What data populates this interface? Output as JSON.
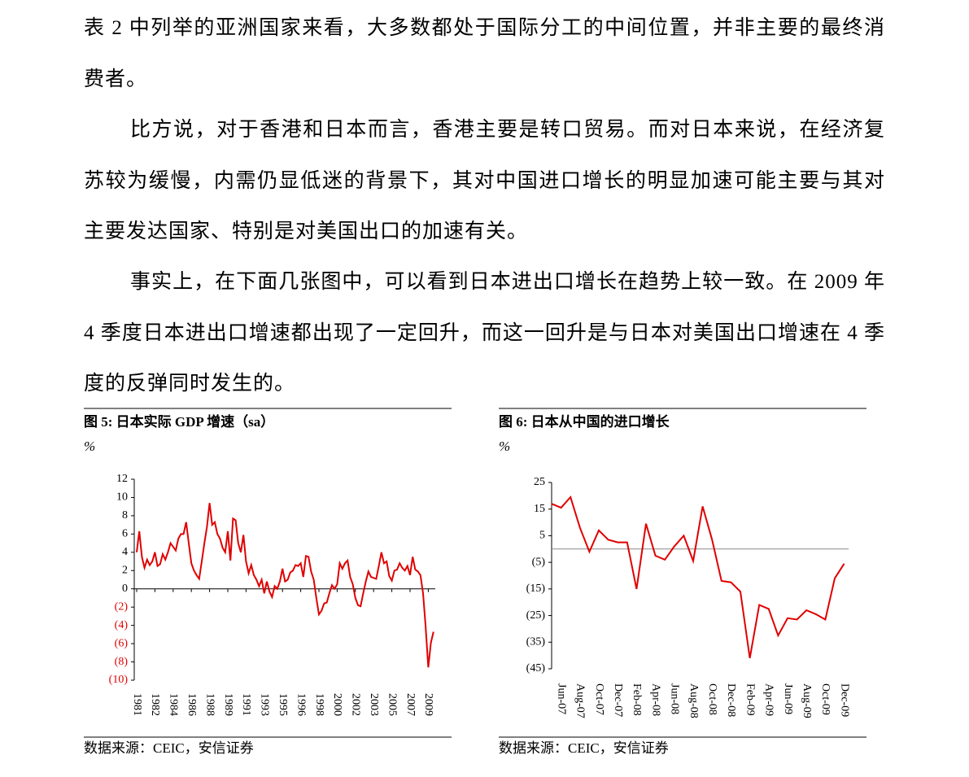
{
  "paragraphs": [
    "表 2 中列举的亚洲国家来看，大多数都处于国际分工的中间位置，并非主要的最终消费者。",
    "比方说，对于香港和日本而言，香港主要是转口贸易。而对日本来说，在经济复苏较为缓慢，内需仍显低迷的背景下，其对中国进口增长的明显加速可能主要与其对主要发达国家、特别是对美国出口的加速有关。",
    "事实上，在下面几张图中，可以看到日本进出口增长在趋势上较一致。在 2009 年 4 季度日本进出口增速都出现了一定回升，而这一回升是与日本对美国出口增速在 4 季度的反弹同时发生的。"
  ],
  "chart_data": [
    {
      "type": "line",
      "title": "图 5:  日本实际 GDP 增速（sa）",
      "ylabel": "%",
      "source": "数据来源：CEIC，安信证券",
      "color": "#e00000",
      "categories": [
        "1981",
        null,
        null,
        null,
        null,
        null,
        null,
        "1982",
        null,
        null,
        null,
        null,
        null,
        null,
        "1984",
        null,
        null,
        null,
        null,
        null,
        null,
        "1986",
        null,
        null,
        null,
        null,
        null,
        null,
        "1988",
        null,
        null,
        null,
        null,
        null,
        null,
        "1989",
        null,
        null,
        null,
        null,
        null,
        null,
        "1991",
        null,
        null,
        null,
        null,
        null,
        null,
        "1993",
        null,
        null,
        null,
        null,
        null,
        null,
        "1995",
        null,
        null,
        null,
        null,
        null,
        null,
        "1996",
        null,
        null,
        null,
        null,
        null,
        null,
        "1998",
        null,
        null,
        null,
        null,
        null,
        null,
        "2000",
        null,
        null,
        null,
        null,
        null,
        null,
        "2002",
        null,
        null,
        null,
        null,
        null,
        null,
        "2003",
        null,
        null,
        null,
        null,
        null,
        null,
        "2005",
        null,
        null,
        null,
        null,
        null,
        null,
        "2007",
        null,
        null,
        null,
        null,
        null,
        null,
        "2009",
        null,
        null
      ],
      "values": [
        4.0,
        6.3,
        3.5,
        2.3,
        3.2,
        2.6,
        3.0,
        4.0,
        2.5,
        2.7,
        3.8,
        3.2,
        4.0,
        5.0,
        4.6,
        4.2,
        5.5,
        6.0,
        6.0,
        7.3,
        5.0,
        2.8,
        2.0,
        1.5,
        1.1,
        3.0,
        5.0,
        6.8,
        9.4,
        7.0,
        7.3,
        6.0,
        5.5,
        4.5,
        4.0,
        6.3,
        3.1,
        7.7,
        7.5,
        5.0,
        4.0,
        5.9,
        3.0,
        1.7,
        2.6,
        1.5,
        1.0,
        0.3,
        1.0,
        -0.5,
        0.8,
        -0.3,
        -0.9,
        0.3,
        0.0,
        0.8,
        2.2,
        0.8,
        1.0,
        1.8,
        2.0,
        2.6,
        2.5,
        2.8,
        1.3,
        3.6,
        3.5,
        1.9,
        1.0,
        -1.0,
        -2.8,
        -2.4,
        -1.6,
        -1.5,
        -0.5,
        0.4,
        0.0,
        0.5,
        2.8,
        2.2,
        2.8,
        3.1,
        1.3,
        0.5,
        -1.0,
        -1.8,
        -1.9,
        -0.5,
        0.8,
        1.9,
        1.3,
        1.2,
        1.1,
        2.5,
        4.0,
        2.8,
        3.0,
        1.4,
        0.9,
        2.0,
        2.1,
        2.8,
        2.3,
        2.0,
        2.5,
        1.5,
        3.5,
        2.1,
        1.9,
        1.5,
        -0.5,
        -4.2,
        -8.6,
        -5.9,
        -4.7
      ],
      "ylim": [
        -10,
        12
      ],
      "yticks": [
        12,
        10,
        8,
        6,
        4,
        2,
        0,
        {
          "value": -2,
          "label": "(2)"
        },
        {
          "value": -4,
          "label": "(4)"
        },
        {
          "value": -6,
          "label": "(6)"
        },
        {
          "value": -8,
          "label": "(8)"
        },
        {
          "value": -10,
          "label": "(10)"
        }
      ]
    },
    {
      "type": "line",
      "title": "图 6:  日本从中国的进口增长",
      "ylabel": "%",
      "source": "数据来源：CEIC，安信证券",
      "color": "#e00000",
      "categories": [
        null,
        "Jun-07",
        null,
        "Aug-07",
        null,
        "Oct-07",
        null,
        "Dec-07",
        null,
        "Feb-08",
        null,
        "Apr-08",
        null,
        "Jun-08",
        null,
        "Aug-08",
        null,
        "Oct-08",
        null,
        "Dec-08",
        null,
        "Feb-09",
        null,
        "Apr-09",
        null,
        "Jun-09",
        null,
        "Aug-09",
        null,
        "Oct-09",
        null,
        "Dec-09"
      ],
      "values": [
        17,
        15.5,
        19.5,
        8,
        -1,
        7,
        3.5,
        2.5,
        2.5,
        -15,
        9.5,
        -2.5,
        -4,
        1,
        5,
        -4.5,
        16,
        3.5,
        -12,
        -12.5,
        -16,
        -41,
        -21,
        -22.5,
        -32.5,
        -26,
        -26.5,
        -23,
        -24.5,
        -26.5,
        -11,
        -5.5
      ],
      "ylim": [
        -45,
        25
      ],
      "yticks": [
        25,
        15,
        5,
        {
          "value": -5,
          "label": "(5)"
        },
        {
          "value": -15,
          "label": "(15)"
        },
        {
          "value": -25,
          "label": "(25)"
        },
        {
          "value": -35,
          "label": "(35)"
        },
        {
          "value": -45,
          "label": "(45)"
        }
      ]
    }
  ]
}
